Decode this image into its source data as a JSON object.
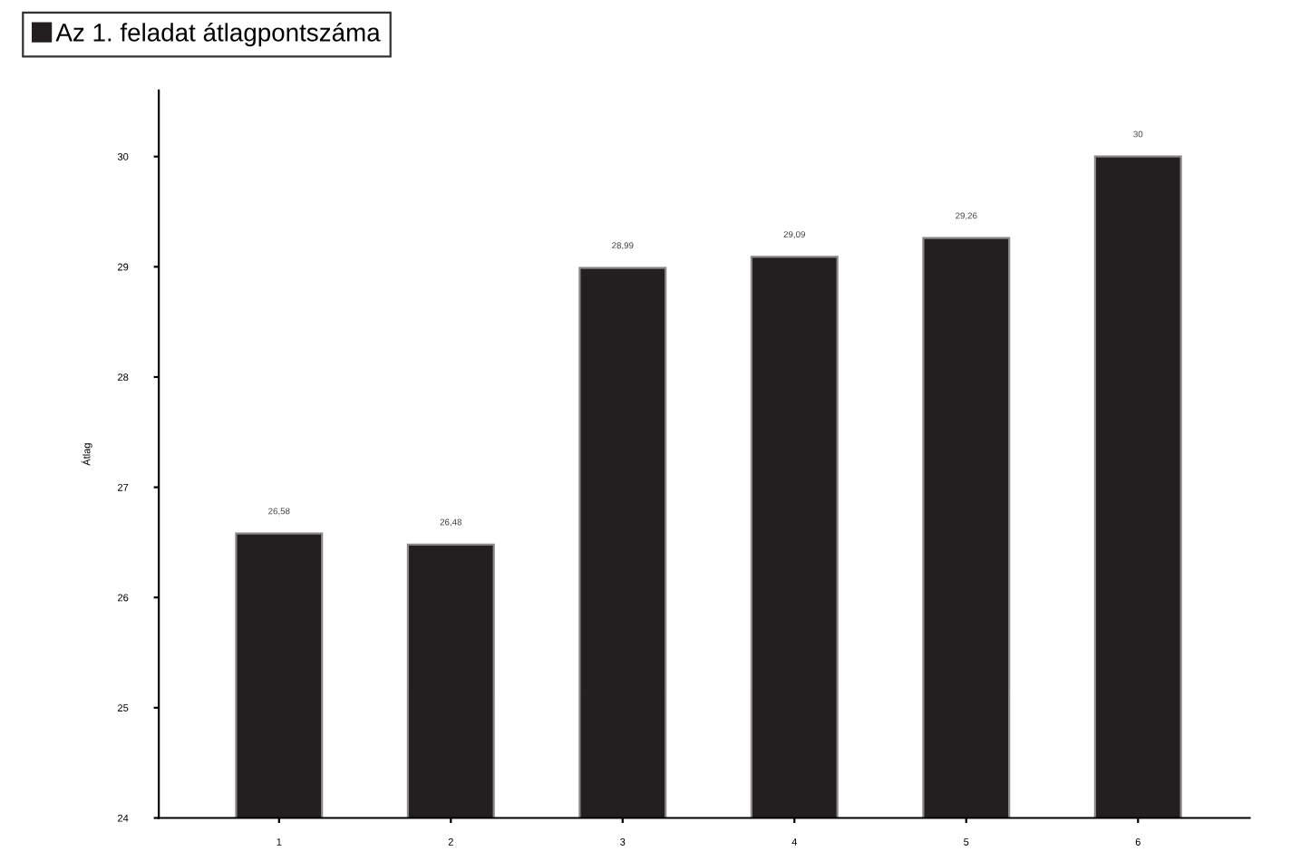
{
  "chart_data": {
    "type": "bar",
    "ylabel": "Átlag",
    "categories": [
      "1",
      "2",
      "3",
      "4",
      "5",
      "6"
    ],
    "series": [
      {
        "name": "Az 1. feladat átlagpontszáma",
        "color": "#231f20",
        "values": [
          26.58,
          26.48,
          28.99,
          29.09,
          29.26,
          30
        ]
      }
    ],
    "value_labels": [
      "26,58",
      "26,48",
      "28,99",
      "29,09",
      "29,26",
      "30"
    ],
    "ylim": [
      24,
      30.6
    ],
    "yticks": [
      24,
      25,
      26,
      27,
      28,
      29,
      30
    ],
    "grid": false,
    "legend": "top left"
  }
}
